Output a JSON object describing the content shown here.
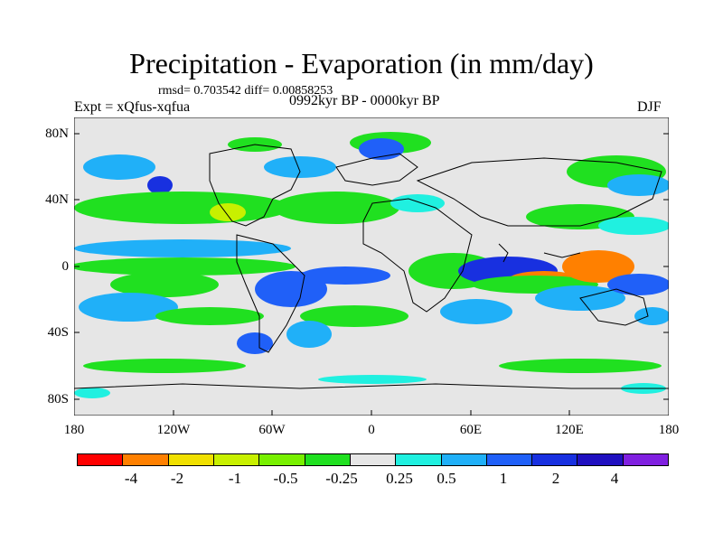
{
  "title": "Precipitation - Evaporation (in mm/day)",
  "stats": "rmsd= 0.703542 diff= 0.00858253",
  "experiment": "Expt = xQfus-xqfua",
  "period": "0992kyr BP - 0000kyr BP",
  "season": "DJF",
  "lat_labels": [
    "80N",
    "40N",
    "0",
    "40S",
    "80S"
  ],
  "lon_labels": [
    "180",
    "120W",
    "60W",
    "0",
    "60E",
    "120E",
    "180"
  ],
  "colorbar": {
    "colors": [
      "#ff0000",
      "#ff8000",
      "#f0e000",
      "#c8f000",
      "#78f000",
      "#20e020",
      "#e6e6e6",
      "#20f0e0",
      "#20b0f8",
      "#2060f8",
      "#1830e0",
      "#2010c0",
      "#8020e0"
    ],
    "labels": [
      "-4",
      "-2",
      "-1",
      "-0.5",
      "-0.25",
      "0.25",
      "0.5",
      "1",
      "2",
      "4"
    ]
  },
  "legend_colors": {
    "land_outline": "#000000",
    "background": "#e6e6e6"
  }
}
